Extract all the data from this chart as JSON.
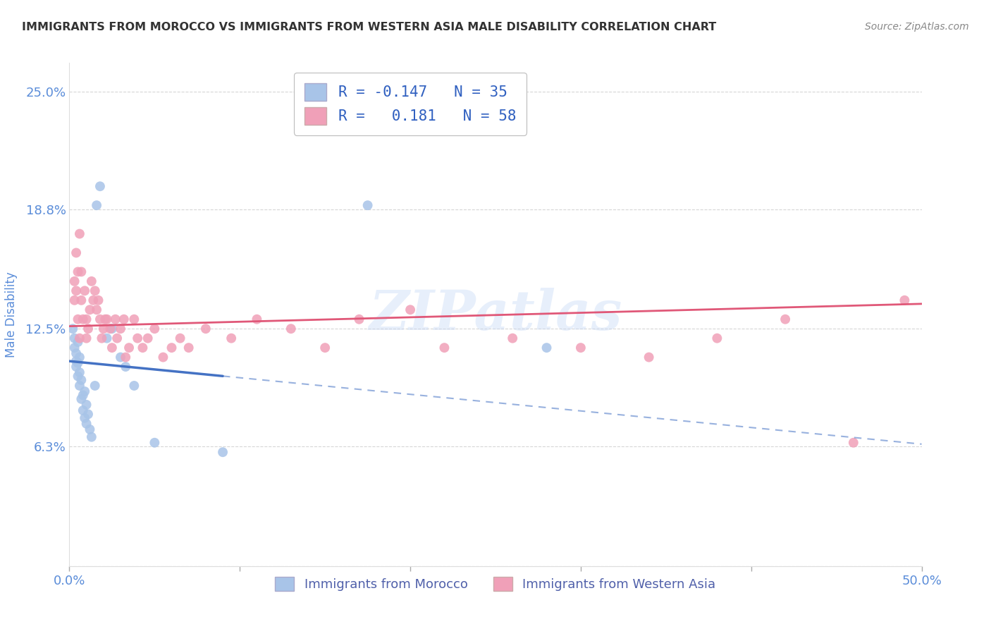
{
  "title": "IMMIGRANTS FROM MOROCCO VS IMMIGRANTS FROM WESTERN ASIA MALE DISABILITY CORRELATION CHART",
  "source": "Source: ZipAtlas.com",
  "ylabel": "Male Disability",
  "xlim": [
    0.0,
    0.5
  ],
  "ylim": [
    0.0,
    0.265
  ],
  "yticks": [
    0.0,
    0.063,
    0.125,
    0.188,
    0.25
  ],
  "ytick_labels": [
    "",
    "6.3%",
    "12.5%",
    "18.8%",
    "25.0%"
  ],
  "xticks": [
    0.0,
    0.1,
    0.2,
    0.3,
    0.4,
    0.5
  ],
  "xtick_labels": [
    "0.0%",
    "",
    "",
    "",
    "",
    "50.0%"
  ],
  "morocco_R": -0.147,
  "morocco_N": 35,
  "western_asia_R": 0.181,
  "western_asia_N": 58,
  "morocco_color": "#a8c4e8",
  "western_asia_color": "#f0a0b8",
  "morocco_line_color": "#4472c4",
  "western_asia_line_color": "#e05878",
  "watermark": "ZIPatlas",
  "morocco_scatter_x": [
    0.002,
    0.003,
    0.003,
    0.004,
    0.004,
    0.004,
    0.005,
    0.005,
    0.005,
    0.006,
    0.006,
    0.006,
    0.007,
    0.007,
    0.008,
    0.008,
    0.009,
    0.009,
    0.01,
    0.01,
    0.011,
    0.012,
    0.013,
    0.015,
    0.016,
    0.018,
    0.022,
    0.025,
    0.03,
    0.033,
    0.038,
    0.05,
    0.09,
    0.175,
    0.28
  ],
  "morocco_scatter_y": [
    0.125,
    0.115,
    0.12,
    0.105,
    0.108,
    0.112,
    0.1,
    0.107,
    0.118,
    0.095,
    0.102,
    0.11,
    0.088,
    0.098,
    0.082,
    0.09,
    0.078,
    0.092,
    0.075,
    0.085,
    0.08,
    0.072,
    0.068,
    0.095,
    0.19,
    0.2,
    0.12,
    0.125,
    0.11,
    0.105,
    0.095,
    0.065,
    0.06,
    0.19,
    0.115
  ],
  "western_asia_scatter_x": [
    0.003,
    0.003,
    0.004,
    0.004,
    0.005,
    0.005,
    0.006,
    0.006,
    0.007,
    0.007,
    0.008,
    0.009,
    0.01,
    0.01,
    0.011,
    0.012,
    0.013,
    0.014,
    0.015,
    0.016,
    0.017,
    0.018,
    0.019,
    0.02,
    0.021,
    0.022,
    0.024,
    0.025,
    0.027,
    0.028,
    0.03,
    0.032,
    0.033,
    0.035,
    0.038,
    0.04,
    0.043,
    0.046,
    0.05,
    0.055,
    0.06,
    0.065,
    0.07,
    0.08,
    0.095,
    0.11,
    0.13,
    0.15,
    0.17,
    0.2,
    0.22,
    0.26,
    0.3,
    0.34,
    0.38,
    0.42,
    0.46,
    0.49
  ],
  "western_asia_scatter_y": [
    0.14,
    0.15,
    0.165,
    0.145,
    0.13,
    0.155,
    0.175,
    0.12,
    0.14,
    0.155,
    0.13,
    0.145,
    0.12,
    0.13,
    0.125,
    0.135,
    0.15,
    0.14,
    0.145,
    0.135,
    0.14,
    0.13,
    0.12,
    0.125,
    0.13,
    0.13,
    0.125,
    0.115,
    0.13,
    0.12,
    0.125,
    0.13,
    0.11,
    0.115,
    0.13,
    0.12,
    0.115,
    0.12,
    0.125,
    0.11,
    0.115,
    0.12,
    0.115,
    0.125,
    0.12,
    0.13,
    0.125,
    0.115,
    0.13,
    0.135,
    0.115,
    0.12,
    0.115,
    0.11,
    0.12,
    0.13,
    0.065,
    0.14
  ],
  "background_color": "#ffffff",
  "grid_color": "#cccccc",
  "title_color": "#333333",
  "tick_color": "#5b8dd9"
}
